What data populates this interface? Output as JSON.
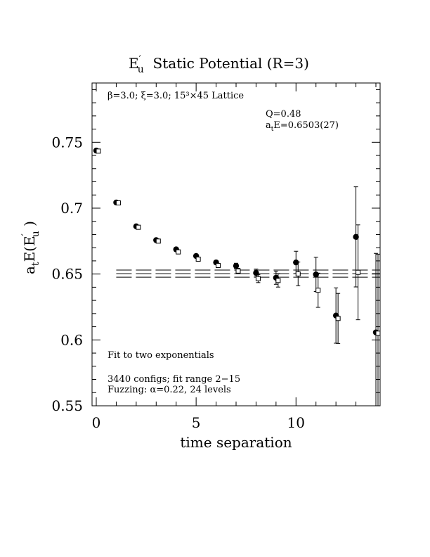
{
  "chart_data": {
    "type": "scatter",
    "title_main": "E",
    "title_prime": "′",
    "title_sub": "u",
    "title_rest": "  Static Potential (R=3)",
    "xlabel": "time separation",
    "ylabel_main": "a",
    "ylabel_sub": "t",
    "ylabel_rest": "E(E",
    "ylabel_prime": "′",
    "ylabel_sub2": "u",
    "ylabel_end": " )",
    "xlim": [
      0,
      14
    ],
    "ylim": [
      0.55,
      0.795
    ],
    "xticks": [
      0,
      5,
      10
    ],
    "xtick_labels": [
      "0",
      "5",
      "10"
    ],
    "yticks": [
      0.55,
      0.6,
      0.65,
      0.7,
      0.75
    ],
    "ytick_labels": [
      "0.55",
      "0.6",
      "0.65",
      "0.7",
      "0.75"
    ],
    "annotations": {
      "lattice": "β=3.0; ξ=3.0; 15³×45 Lattice",
      "q": "Q=0.48",
      "ate_a": "a",
      "ate_t": "t",
      "ate_rest": "E=0.6503(27)",
      "fit": "Fit to two exponentials",
      "configs": "3440 configs; fit range 2−15",
      "fuzzing": "Fuzzing: α=0.22, 24 levels"
    },
    "series": [
      {
        "marker": "filled-circle",
        "points": [
          {
            "x": 0,
            "y": 0.7437,
            "err": 0.0005
          },
          {
            "x": 1,
            "y": 0.7043,
            "err": 0.0005
          },
          {
            "x": 2,
            "y": 0.6862,
            "err": 0.0006
          },
          {
            "x": 3,
            "y": 0.6757,
            "err": 0.0008
          },
          {
            "x": 4,
            "y": 0.6687,
            "err": 0.001
          },
          {
            "x": 5,
            "y": 0.6637,
            "err": 0.0012
          },
          {
            "x": 6,
            "y": 0.6588,
            "err": 0.0015
          },
          {
            "x": 7,
            "y": 0.6562,
            "err": 0.002
          },
          {
            "x": 8,
            "y": 0.6508,
            "err": 0.003
          },
          {
            "x": 9,
            "y": 0.6472,
            "err": 0.005
          },
          {
            "x": 10,
            "y": 0.6588,
            "err": 0.0085
          },
          {
            "x": 11,
            "y": 0.6497,
            "err": 0.013
          },
          {
            "x": 12,
            "y": 0.6185,
            "err": 0.021
          },
          {
            "x": 13,
            "y": 0.6782,
            "err": 0.038
          },
          {
            "x": 14,
            "y": 0.6057,
            "err": 0.06
          }
        ]
      },
      {
        "marker": "open-square",
        "points": [
          {
            "x": 0,
            "y": 0.7433,
            "err": 0.0005
          },
          {
            "x": 1,
            "y": 0.704,
            "err": 0.0005
          },
          {
            "x": 2,
            "y": 0.6855,
            "err": 0.0006
          },
          {
            "x": 3,
            "y": 0.675,
            "err": 0.0008
          },
          {
            "x": 4,
            "y": 0.6668,
            "err": 0.001
          },
          {
            "x": 5,
            "y": 0.6613,
            "err": 0.0012
          },
          {
            "x": 6,
            "y": 0.6565,
            "err": 0.0015
          },
          {
            "x": 7,
            "y": 0.6523,
            "err": 0.002
          },
          {
            "x": 8,
            "y": 0.6465,
            "err": 0.003
          },
          {
            "x": 9,
            "y": 0.6451,
            "err": 0.005
          },
          {
            "x": 10,
            "y": 0.6501,
            "err": 0.009
          },
          {
            "x": 11,
            "y": 0.6377,
            "err": 0.013
          },
          {
            "x": 12,
            "y": 0.6163,
            "err": 0.019
          },
          {
            "x": 13,
            "y": 0.6513,
            "err": 0.036
          },
          {
            "x": 14,
            "y": 0.6051,
            "err": 0.06
          }
        ]
      }
    ],
    "fit": {
      "value": 0.6503,
      "error": 0.0027,
      "x_range": [
        1.0,
        15.0
      ],
      "style": "long-dash"
    },
    "grid": false,
    "legend": "none"
  }
}
